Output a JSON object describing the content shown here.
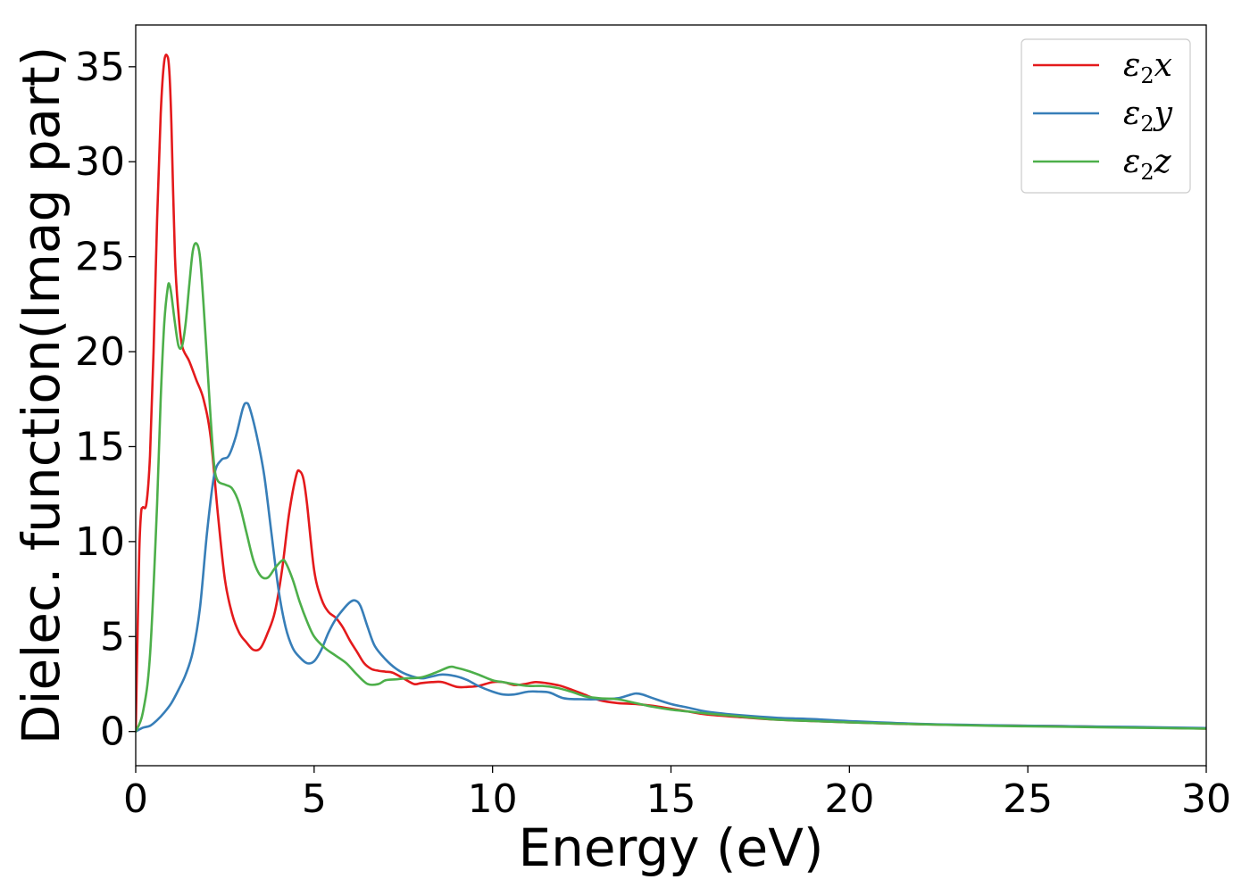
{
  "chart_data": {
    "type": "line",
    "title": "",
    "xlabel": "Energy (eV)",
    "ylabel": "Dielec. function(Imag part)",
    "xlim": [
      0,
      30
    ],
    "ylim": [
      -1.8,
      37.2
    ],
    "xticks": [
      0,
      5,
      10,
      15,
      20,
      25,
      30
    ],
    "yticks": [
      0,
      5,
      10,
      15,
      20,
      25,
      30,
      35
    ],
    "grid": false,
    "legend_position": "top-right",
    "series": [
      {
        "name": "ε₂x",
        "legend": {
          "base": "ε",
          "sub": "2",
          "var": "x"
        },
        "color": "#e41a1c",
        "x": [
          0,
          0.05,
          0.1,
          0.15,
          0.2,
          0.3,
          0.4,
          0.5,
          0.6,
          0.7,
          0.8,
          0.9,
          0.95,
          1.0,
          1.1,
          1.2,
          1.3,
          1.5,
          1.7,
          1.9,
          2.1,
          2.3,
          2.5,
          2.7,
          2.9,
          3.1,
          3.3,
          3.5,
          3.7,
          3.9,
          4.1,
          4.3,
          4.5,
          4.6,
          4.7,
          4.8,
          5.0,
          5.2,
          5.4,
          5.6,
          5.8,
          6.0,
          6.2,
          6.4,
          6.6,
          6.8,
          7.0,
          7.2,
          7.5,
          7.8,
          8.0,
          8.3,
          8.6,
          9.0,
          9.3,
          9.6,
          10.0,
          10.3,
          10.6,
          10.9,
          11.2,
          11.5,
          11.8,
          12.0,
          12.5,
          13.0,
          13.5,
          14.0,
          14.5,
          15.0,
          15.5,
          16.0,
          17.0,
          18.0,
          19.0,
          20.0,
          22.0,
          24.0,
          26.0,
          28.0,
          30.0
        ],
        "y": [
          0,
          5,
          9.5,
          11.5,
          11.8,
          12.0,
          14.5,
          20,
          27,
          32.5,
          35.3,
          35.5,
          34.5,
          32,
          25,
          22,
          20.3,
          19.5,
          18.5,
          17.5,
          15.5,
          11.5,
          8,
          6.2,
          5.2,
          4.7,
          4.3,
          4.4,
          5.2,
          6.3,
          8.5,
          11.5,
          13.5,
          13.7,
          13.3,
          12,
          8.5,
          7,
          6.3,
          6.0,
          5.5,
          4.8,
          4.2,
          3.6,
          3.3,
          3.2,
          3.15,
          3.1,
          2.8,
          2.5,
          2.55,
          2.6,
          2.6,
          2.35,
          2.35,
          2.4,
          2.6,
          2.6,
          2.45,
          2.5,
          2.6,
          2.55,
          2.45,
          2.35,
          2.0,
          1.65,
          1.5,
          1.45,
          1.35,
          1.2,
          1.05,
          0.9,
          0.75,
          0.62,
          0.55,
          0.48,
          0.38,
          0.32,
          0.28,
          0.22,
          0.15
        ]
      },
      {
        "name": "ε₂y",
        "legend": {
          "base": "ε",
          "sub": "2",
          "var": "y"
        },
        "color": "#377eb8",
        "x": [
          0,
          0.2,
          0.4,
          0.6,
          0.8,
          1.0,
          1.2,
          1.4,
          1.6,
          1.8,
          2.0,
          2.2,
          2.4,
          2.6,
          2.8,
          3.0,
          3.1,
          3.2,
          3.4,
          3.6,
          3.8,
          4.0,
          4.2,
          4.4,
          4.6,
          4.8,
          5.0,
          5.2,
          5.4,
          5.6,
          5.8,
          6.0,
          6.15,
          6.3,
          6.5,
          6.7,
          7.0,
          7.3,
          7.6,
          8.0,
          8.3,
          8.6,
          9.0,
          9.3,
          9.6,
          10.0,
          10.3,
          10.6,
          11.0,
          11.3,
          11.6,
          12.0,
          12.5,
          13.0,
          13.5,
          13.8,
          14.0,
          14.2,
          14.5,
          15.0,
          15.5,
          16.0,
          17.0,
          18.0,
          19.0,
          20.0,
          22.0,
          24.0,
          26.0,
          28.0,
          30.0
        ],
        "y": [
          0,
          0.2,
          0.3,
          0.6,
          1.0,
          1.5,
          2.2,
          3.0,
          4.2,
          6.5,
          10.5,
          13.5,
          14.3,
          14.5,
          15.5,
          17.0,
          17.3,
          17.0,
          15.5,
          13.5,
          10.5,
          7.5,
          5.5,
          4.4,
          3.9,
          3.6,
          3.7,
          4.3,
          5.2,
          5.9,
          6.4,
          6.8,
          6.9,
          6.6,
          5.5,
          4.5,
          3.8,
          3.3,
          3.0,
          2.8,
          2.9,
          3.0,
          2.9,
          2.7,
          2.4,
          2.1,
          1.95,
          1.95,
          2.1,
          2.1,
          2.05,
          1.75,
          1.7,
          1.7,
          1.75,
          1.9,
          2.0,
          1.95,
          1.75,
          1.45,
          1.25,
          1.05,
          0.85,
          0.72,
          0.65,
          0.55,
          0.4,
          0.33,
          0.28,
          0.24,
          0.18
        ]
      },
      {
        "name": "ε₂z",
        "legend": {
          "base": "ε",
          "sub": "2",
          "var": "z"
        },
        "color": "#4daf4a",
        "x": [
          0,
          0.2,
          0.4,
          0.6,
          0.7,
          0.8,
          0.9,
          0.95,
          1.0,
          1.1,
          1.2,
          1.3,
          1.4,
          1.5,
          1.6,
          1.7,
          1.8,
          1.9,
          2.0,
          2.1,
          2.2,
          2.3,
          2.5,
          2.7,
          2.9,
          3.1,
          3.3,
          3.5,
          3.7,
          3.9,
          4.1,
          4.2,
          4.4,
          4.6,
          4.8,
          5.0,
          5.3,
          5.6,
          5.9,
          6.2,
          6.5,
          6.8,
          7.0,
          7.3,
          7.6,
          8.0,
          8.4,
          8.8,
          9.0,
          9.3,
          9.6,
          10.0,
          10.3,
          10.6,
          11.0,
          11.4,
          11.8,
          12.2,
          12.6,
          13.0,
          13.5,
          14.0,
          14.5,
          15.0,
          15.5,
          16.0,
          17.0,
          18.0,
          19.0,
          20.0,
          22.0,
          24.0,
          26.0,
          28.0,
          30.0
        ],
        "y": [
          0,
          1.0,
          4.0,
          12.0,
          17.5,
          21.5,
          23.4,
          23.5,
          23.0,
          21.5,
          20.3,
          20.3,
          21.5,
          23.5,
          25.3,
          25.7,
          25.0,
          22.5,
          19.5,
          16.5,
          14.0,
          13.2,
          13.0,
          12.8,
          12.0,
          10.5,
          9.0,
          8.2,
          8.1,
          8.6,
          9.0,
          8.9,
          8.0,
          6.8,
          5.8,
          5.0,
          4.4,
          4.0,
          3.6,
          3.0,
          2.5,
          2.5,
          2.7,
          2.75,
          2.8,
          2.85,
          3.1,
          3.4,
          3.35,
          3.2,
          3.0,
          2.7,
          2.6,
          2.5,
          2.4,
          2.4,
          2.3,
          2.1,
          1.85,
          1.75,
          1.7,
          1.5,
          1.3,
          1.15,
          1.05,
          0.95,
          0.78,
          0.62,
          0.55,
          0.48,
          0.38,
          0.3,
          0.25,
          0.2,
          0.15
        ]
      }
    ]
  }
}
